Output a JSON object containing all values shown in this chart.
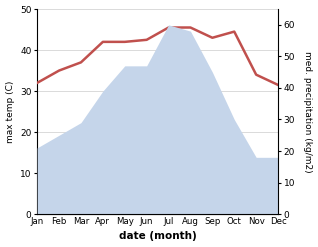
{
  "months": [
    "Jan",
    "Feb",
    "Mar",
    "Apr",
    "May",
    "Jun",
    "Jul",
    "Aug",
    "Sep",
    "Oct",
    "Nov",
    "Dec"
  ],
  "temperature": [
    32,
    35,
    37,
    42,
    42,
    42.5,
    45.5,
    45.5,
    43,
    44.5,
    34,
    31.5
  ],
  "precipitation": [
    21,
    25,
    29,
    39,
    47,
    47,
    60,
    58,
    45,
    30,
    18,
    18
  ],
  "temp_color": "#c0504d",
  "precip_fill_color": "#c5d5ea",
  "temp_ylim": [
    0,
    50
  ],
  "precip_ylim": [
    0,
    65
  ],
  "temp_yticks": [
    0,
    10,
    20,
    30,
    40,
    50
  ],
  "precip_yticks": [
    0,
    10,
    20,
    30,
    40,
    50,
    60
  ],
  "ylabel_left": "max temp (C)",
  "ylabel_right": "med. precipitation (kg/m2)",
  "xlabel": "date (month)",
  "bg_color": "#ffffff",
  "linewidth": 1.8,
  "fig_width": 3.18,
  "fig_height": 2.47,
  "dpi": 100
}
